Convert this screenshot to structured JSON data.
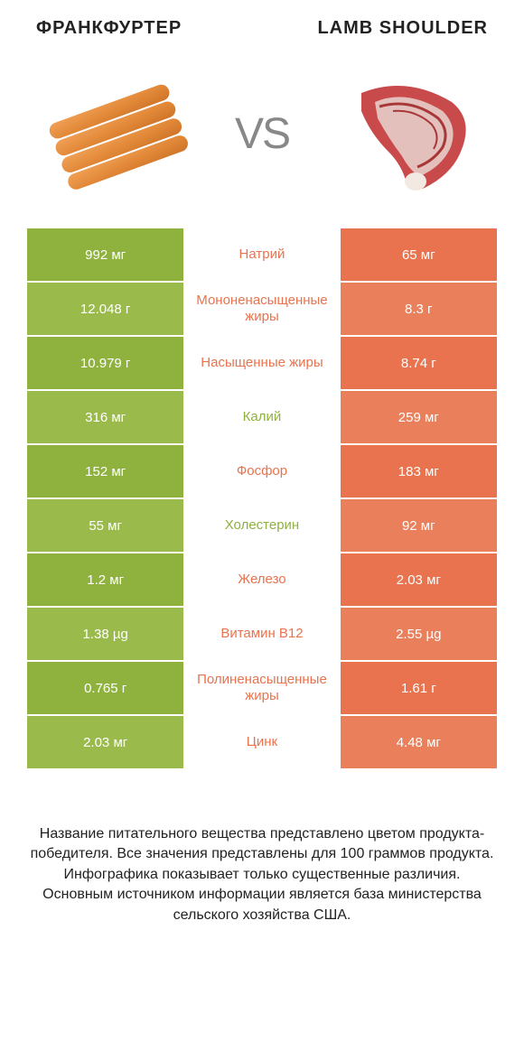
{
  "colors": {
    "green": "#8fb23f",
    "green_alt": "#9abb4c",
    "orange": "#e8734e",
    "orange_alt": "#ea7f5b",
    "mid_green_text": "#8fb23f",
    "mid_orange_text": "#e8734e"
  },
  "header": {
    "left": "ФРАНКФУРТЕР",
    "right": "LAMB SHOULDER",
    "vs": "VS"
  },
  "rows": [
    {
      "label": "Натрий",
      "left": "992 мг",
      "right": "65 мг",
      "winner": "orange"
    },
    {
      "label": "Мононенасыщенные жиры",
      "left": "12.048 г",
      "right": "8.3 г",
      "winner": "orange"
    },
    {
      "label": "Насыщенные жиры",
      "left": "10.979 г",
      "right": "8.74 г",
      "winner": "orange"
    },
    {
      "label": "Калий",
      "left": "316 мг",
      "right": "259 мг",
      "winner": "green"
    },
    {
      "label": "Фосфор",
      "left": "152 мг",
      "right": "183 мг",
      "winner": "orange"
    },
    {
      "label": "Холестерин",
      "left": "55 мг",
      "right": "92 мг",
      "winner": "green"
    },
    {
      "label": "Железо",
      "left": "1.2 мг",
      "right": "2.03 мг",
      "winner": "orange"
    },
    {
      "label": "Витамин B12",
      "left": "1.38 µg",
      "right": "2.55 µg",
      "winner": "orange"
    },
    {
      "label": "Полиненасыщенные жиры",
      "left": "0.765 г",
      "right": "1.61 г",
      "winner": "orange"
    },
    {
      "label": "Цинк",
      "left": "2.03 мг",
      "right": "4.48 мг",
      "winner": "orange"
    }
  ],
  "footnote": "Название питательного вещества представлено цветом продукта-победителя.\nВсе значения представлены для 100 граммов продукта.\nИнфографика показывает только существенные различия.\nОсновным источником информации является база министерства сельского хозяйства США."
}
